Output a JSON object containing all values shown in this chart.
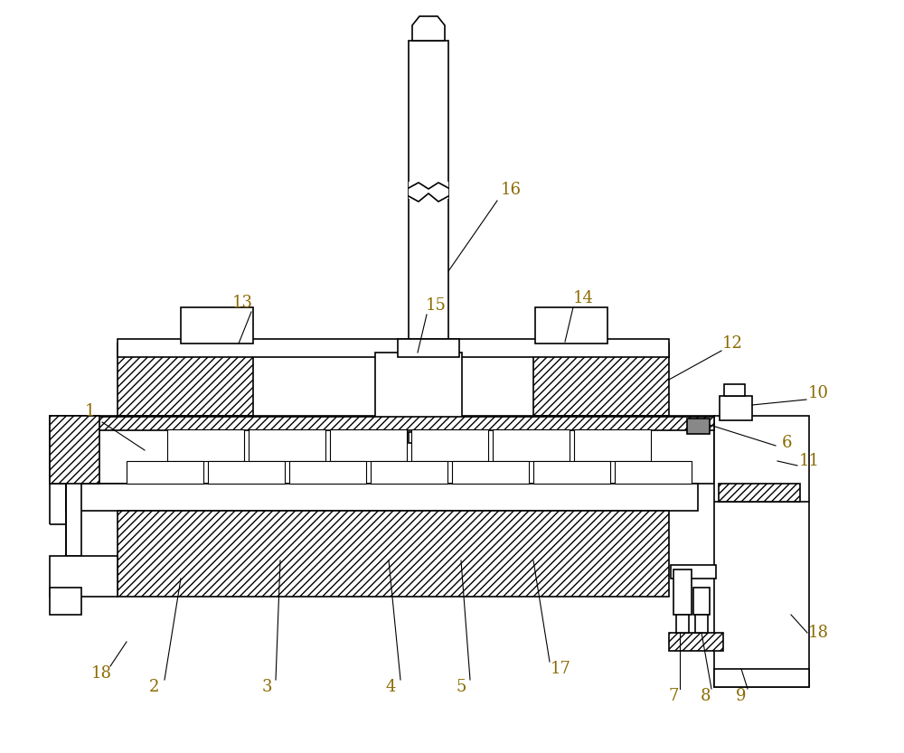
{
  "bg_color": "#ffffff",
  "lc": "#000000",
  "lblc": "#8B6A00",
  "lw": 1.2,
  "lw_thin": 0.7,
  "hatch_density": "////"
}
